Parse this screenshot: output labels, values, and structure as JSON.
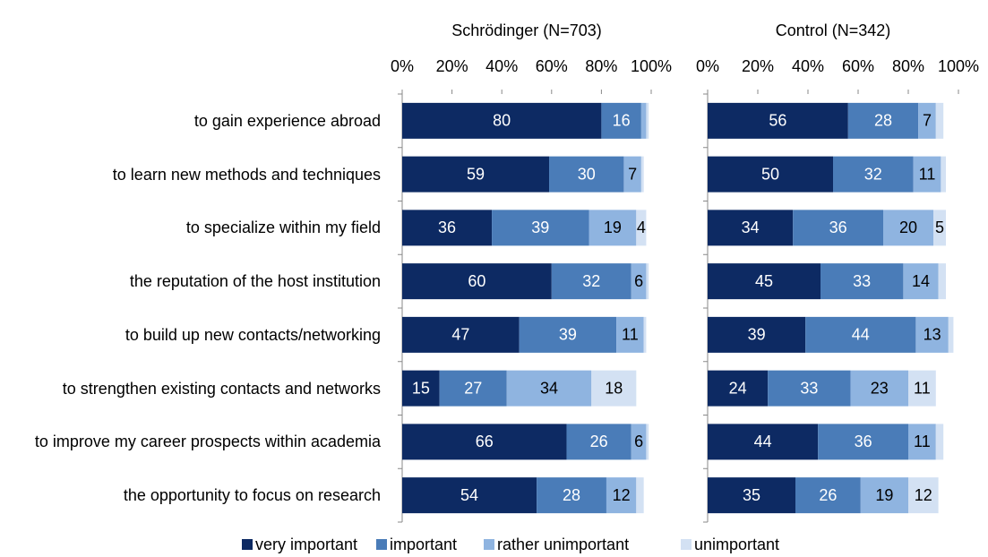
{
  "chart_data": [
    {
      "type": "stacked-bar-horizontal",
      "title": "Schrödinger (N=703)",
      "categories": [
        "to gain experience abroad",
        "to learn new methods and techniques",
        "to specialize within my field",
        "the reputation of the host institution",
        "to build up new contacts/networking",
        "to strengthen existing contacts and networks",
        "to improve my career prospects within academia",
        "the opportunity to focus on research"
      ],
      "xlim": [
        0,
        100
      ],
      "xticks": [
        {
          "value": 0,
          "label": "0%"
        },
        {
          "value": 20,
          "label": "20%"
        },
        {
          "value": 40,
          "label": "40%"
        },
        {
          "value": 60,
          "label": "60%"
        },
        {
          "value": 80,
          "label": "80%"
        },
        {
          "value": 100,
          "label": "100%"
        }
      ],
      "legend": "bottom",
      "series": [
        {
          "name": "very important",
          "color": "#0d2a63",
          "values": [
            80,
            59,
            36,
            60,
            47,
            15,
            66,
            54
          ],
          "value_labels": [
            "80",
            "59",
            "36",
            "60",
            "47",
            "15",
            "66",
            "54"
          ]
        },
        {
          "name": "important",
          "color": "#4a7cb8",
          "values": [
            16,
            30,
            39,
            32,
            39,
            27,
            26,
            28
          ],
          "value_labels": [
            "16",
            "30",
            "39",
            "32",
            "39",
            "27",
            "26",
            "28"
          ]
        },
        {
          "name": "rather unimportant",
          "color": "#8fb4e0",
          "values": [
            2,
            7,
            19,
            6,
            11,
            34,
            6,
            12
          ],
          "value_labels": [
            null,
            "7",
            "19",
            "6",
            "11",
            "34",
            "6",
            "12"
          ]
        },
        {
          "name": "unimportant",
          "color": "#d3e1f3",
          "values": [
            1,
            1,
            4,
            1,
            1,
            18,
            1,
            3
          ],
          "value_labels": [
            null,
            null,
            "4",
            null,
            null,
            "18",
            null,
            null
          ]
        }
      ]
    },
    {
      "type": "stacked-bar-horizontal",
      "title": "Control (N=342)",
      "xlim": [
        0,
        100
      ],
      "xticks": [
        {
          "value": 0,
          "label": "0%"
        },
        {
          "value": 20,
          "label": "20%"
        },
        {
          "value": 40,
          "label": "40%"
        },
        {
          "value": 60,
          "label": "60%"
        },
        {
          "value": 80,
          "label": "80%"
        },
        {
          "value": 100,
          "label": "100%"
        }
      ],
      "series": [
        {
          "color": "#0d2a63",
          "values": [
            56,
            50,
            34,
            45,
            39,
            24,
            44,
            35
          ],
          "value_labels": [
            "56",
            "50",
            "34",
            "45",
            "39",
            "24",
            "44",
            "35"
          ]
        },
        {
          "color": "#4a7cb8",
          "values": [
            28,
            32,
            36,
            33,
            44,
            33,
            36,
            26
          ],
          "value_labels": [
            "28",
            "32",
            "36",
            "33",
            "44",
            "33",
            "36",
            "26"
          ]
        },
        {
          "color": "#8fb4e0",
          "values": [
            7,
            11,
            20,
            14,
            13,
            23,
            11,
            19
          ],
          "value_labels": [
            "7",
            "11",
            "20",
            "14",
            "13",
            "23",
            "11",
            "19"
          ]
        },
        {
          "color": "#d3e1f3",
          "values": [
            3,
            2,
            5,
            3,
            2,
            11,
            3,
            12
          ],
          "value_labels": [
            null,
            null,
            "5",
            null,
            null,
            "11",
            null,
            "12"
          ]
        }
      ]
    }
  ]
}
